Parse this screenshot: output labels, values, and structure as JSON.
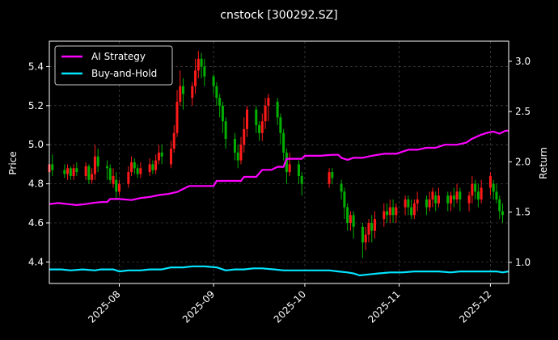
{
  "chart_data": {
    "type": "line",
    "title": "cnstock [300292.SZ]",
    "ylabel_left": "Price",
    "ylabel_right": "Return",
    "x_ticks": [
      "2025-08",
      "2025-09",
      "2025-10",
      "2025-11",
      "2025-12"
    ],
    "x_tick_dates": [
      "2025-08-01",
      "2025-09-01",
      "2025-10-01",
      "2025-11-01",
      "2025-12-01"
    ],
    "x_range": [
      "2025-07-09",
      "2025-12-07"
    ],
    "y_left_ticks": [
      "4.4",
      "4.6",
      "4.8",
      "5.0",
      "5.2",
      "5.4"
    ],
    "y_left_range": [
      4.29,
      5.53
    ],
    "y_right_ticks": [
      "1.0",
      "1.5",
      "2.0",
      "2.5",
      "3.0"
    ],
    "y_right_range": [
      0.79,
      3.2
    ],
    "grid": true,
    "legend_position": "top-left",
    "colors": {
      "background": "#000000",
      "up": "#ff1a1a",
      "down": "#00b000",
      "grid": "#555555",
      "axes": "#ffffff"
    },
    "series": [
      {
        "name": "AI Strategy",
        "color": "#ff00ff",
        "points": [
          [
            "2025-07-09",
            1.58
          ],
          [
            "2025-07-12",
            1.59
          ],
          [
            "2025-07-15",
            1.58
          ],
          [
            "2025-07-18",
            1.57
          ],
          [
            "2025-07-21",
            1.58
          ],
          [
            "2025-07-23",
            1.59
          ],
          [
            "2025-07-26",
            1.6
          ],
          [
            "2025-07-28",
            1.6
          ],
          [
            "2025-07-29",
            1.63
          ],
          [
            "2025-08-01",
            1.63
          ],
          [
            "2025-08-05",
            1.62
          ],
          [
            "2025-08-08",
            1.64
          ],
          [
            "2025-08-11",
            1.65
          ],
          [
            "2025-08-14",
            1.67
          ],
          [
            "2025-08-17",
            1.68
          ],
          [
            "2025-08-20",
            1.7
          ],
          [
            "2025-08-22",
            1.73
          ],
          [
            "2025-08-24",
            1.76
          ],
          [
            "2025-08-26",
            1.76
          ],
          [
            "2025-08-29",
            1.76
          ],
          [
            "2025-09-01",
            1.76
          ],
          [
            "2025-09-02",
            1.81
          ],
          [
            "2025-09-05",
            1.81
          ],
          [
            "2025-09-08",
            1.81
          ],
          [
            "2025-09-10",
            1.81
          ],
          [
            "2025-09-11",
            1.85
          ],
          [
            "2025-09-14",
            1.85
          ],
          [
            "2025-09-15",
            1.85
          ],
          [
            "2025-09-17",
            1.92
          ],
          [
            "2025-09-20",
            1.92
          ],
          [
            "2025-09-22",
            1.95
          ],
          [
            "2025-09-24",
            1.95
          ],
          [
            "2025-09-25",
            2.03
          ],
          [
            "2025-09-28",
            2.03
          ],
          [
            "2025-09-30",
            2.03
          ],
          [
            "2025-10-01",
            2.06
          ],
          [
            "2025-10-06",
            2.06
          ],
          [
            "2025-10-10",
            2.07
          ],
          [
            "2025-10-12",
            2.07
          ],
          [
            "2025-10-13",
            2.04
          ],
          [
            "2025-10-15",
            2.02
          ],
          [
            "2025-10-17",
            2.04
          ],
          [
            "2025-10-20",
            2.04
          ],
          [
            "2025-10-23",
            2.06
          ],
          [
            "2025-10-27",
            2.08
          ],
          [
            "2025-10-31",
            2.08
          ],
          [
            "2025-11-01",
            2.09
          ],
          [
            "2025-11-04",
            2.12
          ],
          [
            "2025-11-07",
            2.12
          ],
          [
            "2025-11-10",
            2.14
          ],
          [
            "2025-11-13",
            2.14
          ],
          [
            "2025-11-16",
            2.17
          ],
          [
            "2025-11-20",
            2.17
          ],
          [
            "2025-11-23",
            2.19
          ],
          [
            "2025-11-25",
            2.23
          ],
          [
            "2025-11-28",
            2.27
          ],
          [
            "2025-11-30",
            2.29
          ],
          [
            "2025-12-02",
            2.3
          ],
          [
            "2025-12-04",
            2.28
          ],
          [
            "2025-12-06",
            2.31
          ],
          [
            "2025-12-07",
            2.31
          ]
        ]
      },
      {
        "name": "Buy-and-Hold",
        "color": "#00e5ff",
        "points": [
          [
            "2025-07-09",
            0.93
          ],
          [
            "2025-07-13",
            0.93
          ],
          [
            "2025-07-16",
            0.92
          ],
          [
            "2025-07-20",
            0.93
          ],
          [
            "2025-07-24",
            0.92
          ],
          [
            "2025-07-26",
            0.93
          ],
          [
            "2025-07-30",
            0.93
          ],
          [
            "2025-08-01",
            0.91
          ],
          [
            "2025-08-04",
            0.92
          ],
          [
            "2025-08-08",
            0.92
          ],
          [
            "2025-08-11",
            0.93
          ],
          [
            "2025-08-15",
            0.93
          ],
          [
            "2025-08-18",
            0.95
          ],
          [
            "2025-08-22",
            0.95
          ],
          [
            "2025-08-25",
            0.96
          ],
          [
            "2025-08-29",
            0.96
          ],
          [
            "2025-09-02",
            0.95
          ],
          [
            "2025-09-05",
            0.92
          ],
          [
            "2025-09-08",
            0.93
          ],
          [
            "2025-09-11",
            0.93
          ],
          [
            "2025-09-14",
            0.94
          ],
          [
            "2025-09-17",
            0.94
          ],
          [
            "2025-09-21",
            0.93
          ],
          [
            "2025-09-24",
            0.92
          ],
          [
            "2025-09-27",
            0.92
          ],
          [
            "2025-10-01",
            0.92
          ],
          [
            "2025-10-05",
            0.92
          ],
          [
            "2025-10-09",
            0.92
          ],
          [
            "2025-10-12",
            0.91
          ],
          [
            "2025-10-15",
            0.9
          ],
          [
            "2025-10-17",
            0.89
          ],
          [
            "2025-10-19",
            0.87
          ],
          [
            "2025-10-22",
            0.88
          ],
          [
            "2025-10-25",
            0.89
          ],
          [
            "2025-10-29",
            0.9
          ],
          [
            "2025-11-02",
            0.9
          ],
          [
            "2025-11-06",
            0.91
          ],
          [
            "2025-11-10",
            0.91
          ],
          [
            "2025-11-14",
            0.91
          ],
          [
            "2025-11-18",
            0.9
          ],
          [
            "2025-11-21",
            0.91
          ],
          [
            "2025-11-24",
            0.91
          ],
          [
            "2025-11-27",
            0.91
          ],
          [
            "2025-11-30",
            0.91
          ],
          [
            "2025-12-03",
            0.91
          ],
          [
            "2025-12-05",
            0.9
          ],
          [
            "2025-12-07",
            0.91
          ]
        ]
      }
    ],
    "candles": [
      [
        "2025-07-09",
        4.86,
        4.9,
        4.8,
        4.95
      ],
      [
        "2025-07-10",
        4.9,
        4.87,
        4.84,
        4.95
      ],
      [
        "2025-07-14",
        4.87,
        4.85,
        4.83,
        4.9
      ],
      [
        "2025-07-15",
        4.85,
        4.88,
        4.82,
        4.9
      ],
      [
        "2025-07-16",
        4.88,
        4.84,
        4.82,
        4.89
      ],
      [
        "2025-07-17",
        4.84,
        4.88,
        4.82,
        4.9
      ],
      [
        "2025-07-18",
        4.88,
        4.86,
        4.84,
        4.91
      ],
      [
        "2025-07-21",
        4.84,
        4.89,
        4.82,
        4.91
      ],
      [
        "2025-07-22",
        4.89,
        4.82,
        4.8,
        4.9
      ],
      [
        "2025-07-23",
        4.82,
        4.85,
        4.8,
        4.88
      ],
      [
        "2025-07-24",
        4.85,
        4.94,
        4.82,
        5.0
      ],
      [
        "2025-07-25",
        4.94,
        4.89,
        4.86,
        4.98
      ],
      [
        "2025-07-28",
        4.89,
        4.88,
        4.82,
        4.92
      ],
      [
        "2025-07-29",
        4.88,
        4.82,
        4.8,
        4.9
      ],
      [
        "2025-07-30",
        4.8,
        4.84,
        4.78,
        4.88
      ],
      [
        "2025-07-31",
        4.82,
        4.76,
        4.72,
        4.86
      ],
      [
        "2025-08-01",
        4.76,
        4.8,
        4.74,
        4.82
      ],
      [
        "2025-08-04",
        4.8,
        4.86,
        4.78,
        4.89
      ],
      [
        "2025-08-05",
        4.86,
        4.91,
        4.84,
        4.94
      ],
      [
        "2025-08-06",
        4.91,
        4.88,
        4.85,
        4.93
      ],
      [
        "2025-08-07",
        4.88,
        4.85,
        4.83,
        4.9
      ],
      [
        "2025-08-08",
        4.85,
        4.88,
        4.83,
        4.91
      ],
      [
        "2025-08-11",
        4.86,
        4.9,
        4.84,
        4.93
      ],
      [
        "2025-08-12",
        4.9,
        4.87,
        4.85,
        4.92
      ],
      [
        "2025-08-13",
        4.87,
        4.92,
        4.85,
        4.95
      ],
      [
        "2025-08-14",
        4.92,
        4.96,
        4.9,
        5.0
      ],
      [
        "2025-08-15",
        4.96,
        4.94,
        4.9,
        5.0
      ],
      [
        "2025-08-18",
        4.9,
        4.98,
        4.88,
        5.02
      ],
      [
        "2025-08-19",
        4.98,
        5.06,
        4.96,
        5.1
      ],
      [
        "2025-08-20",
        5.06,
        5.22,
        5.04,
        5.28
      ],
      [
        "2025-08-21",
        5.22,
        5.3,
        5.2,
        5.38
      ],
      [
        "2025-08-22",
        5.3,
        5.26,
        5.18,
        5.34
      ],
      [
        "2025-08-25",
        5.24,
        5.3,
        5.2,
        5.32
      ],
      [
        "2025-08-26",
        5.3,
        5.38,
        5.26,
        5.44
      ],
      [
        "2025-08-27",
        5.38,
        5.44,
        5.34,
        5.48
      ],
      [
        "2025-08-28",
        5.44,
        5.4,
        5.34,
        5.47
      ],
      [
        "2025-08-29",
        5.4,
        5.35,
        5.3,
        5.44
      ],
      [
        "2025-09-01",
        5.35,
        5.3,
        5.26,
        5.36
      ],
      [
        "2025-09-02",
        5.3,
        5.24,
        5.2,
        5.32
      ],
      [
        "2025-09-03",
        5.24,
        5.2,
        5.14,
        5.26
      ],
      [
        "2025-09-04",
        5.2,
        5.12,
        5.06,
        5.22
      ],
      [
        "2025-09-05",
        5.12,
        5.03,
        4.98,
        5.14
      ],
      [
        "2025-09-08",
        5.03,
        4.96,
        4.92,
        5.06
      ],
      [
        "2025-09-09",
        4.96,
        4.92,
        4.88,
        5.0
      ],
      [
        "2025-09-10",
        4.92,
        5.0,
        4.9,
        5.04
      ],
      [
        "2025-09-11",
        5.0,
        5.08,
        4.96,
        5.14
      ],
      [
        "2025-09-12",
        5.08,
        5.18,
        5.04,
        5.2
      ],
      [
        "2025-09-15",
        5.18,
        5.1,
        5.06,
        5.2
      ],
      [
        "2025-09-16",
        5.1,
        5.06,
        5.02,
        5.12
      ],
      [
        "2025-09-17",
        5.06,
        5.12,
        5.02,
        5.16
      ],
      [
        "2025-09-18",
        5.12,
        5.2,
        5.08,
        5.24
      ],
      [
        "2025-09-19",
        5.2,
        5.24,
        5.12,
        5.26
      ],
      [
        "2025-09-22",
        5.22,
        5.14,
        5.1,
        5.24
      ],
      [
        "2025-09-23",
        5.14,
        5.06,
        5.0,
        5.16
      ],
      [
        "2025-09-24",
        5.06,
        4.96,
        4.92,
        5.08
      ],
      [
        "2025-09-25",
        4.96,
        4.86,
        4.8,
        4.98
      ],
      [
        "2025-09-26",
        4.86,
        4.9,
        4.84,
        4.96
      ],
      [
        "2025-09-29",
        4.9,
        4.84,
        4.8,
        4.92
      ],
      [
        "2025-09-30",
        4.84,
        4.8,
        4.74,
        4.86
      ],
      [
        "2025-10-09",
        4.8,
        4.86,
        4.78,
        4.88
      ],
      [
        "2025-10-10",
        4.86,
        4.83,
        4.8,
        4.88
      ],
      [
        "2025-10-13",
        4.8,
        4.76,
        4.72,
        4.82
      ],
      [
        "2025-10-14",
        4.76,
        4.68,
        4.62,
        4.78
      ],
      [
        "2025-10-15",
        4.68,
        4.6,
        4.56,
        4.7
      ],
      [
        "2025-10-16",
        4.6,
        4.64,
        4.56,
        4.66
      ],
      [
        "2025-10-17",
        4.64,
        4.58,
        4.52,
        4.66
      ],
      [
        "2025-10-20",
        4.58,
        4.5,
        4.42,
        4.6
      ],
      [
        "2025-10-21",
        4.5,
        4.54,
        4.46,
        4.58
      ],
      [
        "2025-10-22",
        4.54,
        4.6,
        4.5,
        4.62
      ],
      [
        "2025-10-23",
        4.6,
        4.56,
        4.5,
        4.64
      ],
      [
        "2025-10-24",
        4.56,
        4.62,
        4.52,
        4.66
      ],
      [
        "2025-10-27",
        4.62,
        4.66,
        4.58,
        4.7
      ],
      [
        "2025-10-28",
        4.66,
        4.64,
        4.6,
        4.7
      ],
      [
        "2025-10-29",
        4.64,
        4.68,
        4.6,
        4.72
      ],
      [
        "2025-10-30",
        4.68,
        4.64,
        4.6,
        4.72
      ],
      [
        "2025-10-31",
        4.64,
        4.68,
        4.6,
        4.7
      ],
      [
        "2025-11-03",
        4.68,
        4.72,
        4.64,
        4.74
      ],
      [
        "2025-11-04",
        4.72,
        4.68,
        4.64,
        4.74
      ],
      [
        "2025-11-05",
        4.68,
        4.64,
        4.62,
        4.72
      ],
      [
        "2025-11-06",
        4.64,
        4.7,
        4.62,
        4.72
      ],
      [
        "2025-11-07",
        4.7,
        4.72,
        4.66,
        4.76
      ],
      [
        "2025-11-10",
        4.72,
        4.68,
        4.64,
        4.74
      ],
      [
        "2025-11-11",
        4.68,
        4.72,
        4.66,
        4.76
      ],
      [
        "2025-11-12",
        4.72,
        4.76,
        4.68,
        4.78
      ],
      [
        "2025-11-13",
        4.74,
        4.7,
        4.66,
        4.76
      ],
      [
        "2025-11-14",
        4.7,
        4.74,
        4.68,
        4.78
      ],
      [
        "2025-11-17",
        4.74,
        4.7,
        4.66,
        4.76
      ],
      [
        "2025-11-18",
        4.7,
        4.74,
        4.66,
        4.76
      ],
      [
        "2025-11-19",
        4.74,
        4.72,
        4.68,
        4.78
      ],
      [
        "2025-11-20",
        4.72,
        4.76,
        4.7,
        4.8
      ],
      [
        "2025-11-21",
        4.76,
        4.72,
        4.66,
        4.78
      ],
      [
        "2025-11-24",
        4.7,
        4.74,
        4.66,
        4.76
      ],
      [
        "2025-11-25",
        4.74,
        4.8,
        4.7,
        4.84
      ],
      [
        "2025-11-26",
        4.8,
        4.76,
        4.72,
        4.82
      ],
      [
        "2025-11-27",
        4.76,
        4.72,
        4.68,
        4.8
      ],
      [
        "2025-11-28",
        4.72,
        4.78,
        4.7,
        4.82
      ],
      [
        "2025-12-01",
        4.78,
        4.84,
        4.74,
        4.86
      ],
      [
        "2025-12-02",
        4.8,
        4.76,
        4.72,
        4.82
      ],
      [
        "2025-12-03",
        4.76,
        4.72,
        4.7,
        4.8
      ],
      [
        "2025-12-04",
        4.72,
        4.66,
        4.62,
        4.74
      ],
      [
        "2025-12-05",
        4.66,
        4.64,
        4.6,
        4.7
      ]
    ]
  }
}
